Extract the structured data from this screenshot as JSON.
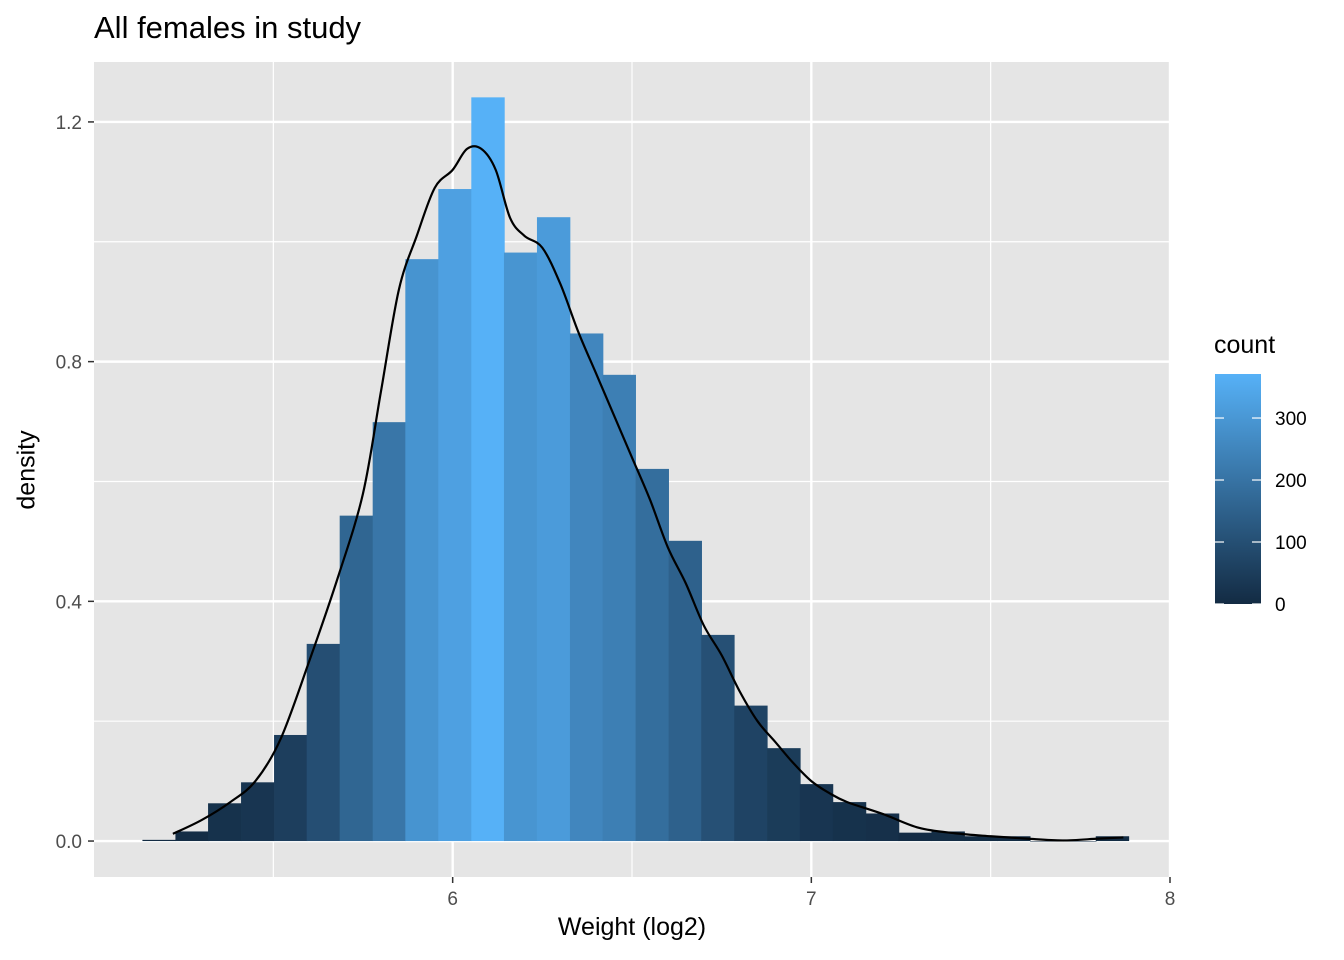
{
  "chart_data": {
    "type": "bar",
    "title": "All females in study",
    "xlabel": "Weight (log2)",
    "ylabel": "density",
    "xlim": [
      5.0,
      8.0
    ],
    "ylim": [
      -0.06,
      1.3
    ],
    "x_ticks": [
      6,
      7,
      8
    ],
    "y_ticks": [
      0.0,
      0.4,
      0.8,
      1.2
    ],
    "y_tick_labels": [
      "0.0",
      "0.4",
      "0.8",
      "1.2"
    ],
    "x_tick_labels": [
      "6",
      "7",
      "8"
    ],
    "bin_width": 0.0917,
    "bins": [
      {
        "x_start": 5.135,
        "density": 0.002,
        "count": 1
      },
      {
        "x_start": 5.227,
        "density": 0.016,
        "count": 5
      },
      {
        "x_start": 5.318,
        "density": 0.063,
        "count": 19
      },
      {
        "x_start": 5.41,
        "density": 0.098,
        "count": 29
      },
      {
        "x_start": 5.502,
        "density": 0.177,
        "count": 53
      },
      {
        "x_start": 5.593,
        "density": 0.329,
        "count": 98
      },
      {
        "x_start": 5.685,
        "density": 0.543,
        "count": 162
      },
      {
        "x_start": 5.777,
        "density": 0.699,
        "count": 209
      },
      {
        "x_start": 5.868,
        "density": 0.971,
        "count": 290
      },
      {
        "x_start": 5.96,
        "density": 1.088,
        "count": 325
      },
      {
        "x_start": 6.052,
        "density": 1.241,
        "count": 371
      },
      {
        "x_start": 6.143,
        "density": 0.982,
        "count": 293
      },
      {
        "x_start": 6.235,
        "density": 1.041,
        "count": 311
      },
      {
        "x_start": 6.327,
        "density": 0.847,
        "count": 253
      },
      {
        "x_start": 6.418,
        "density": 0.778,
        "count": 232
      },
      {
        "x_start": 6.51,
        "density": 0.621,
        "count": 185
      },
      {
        "x_start": 6.602,
        "density": 0.501,
        "count": 150
      },
      {
        "x_start": 6.693,
        "density": 0.344,
        "count": 103
      },
      {
        "x_start": 6.785,
        "density": 0.226,
        "count": 67
      },
      {
        "x_start": 6.877,
        "density": 0.155,
        "count": 46
      },
      {
        "x_start": 6.968,
        "density": 0.095,
        "count": 28
      },
      {
        "x_start": 7.06,
        "density": 0.065,
        "count": 19
      },
      {
        "x_start": 7.152,
        "density": 0.046,
        "count": 14
      },
      {
        "x_start": 7.243,
        "density": 0.014,
        "count": 4
      },
      {
        "x_start": 7.335,
        "density": 0.016,
        "count": 5
      },
      {
        "x_start": 7.427,
        "density": 0.008,
        "count": 2
      },
      {
        "x_start": 7.518,
        "density": 0.008,
        "count": 2
      },
      {
        "x_start": 7.61,
        "density": 0.0,
        "count": 0
      },
      {
        "x_start": 7.702,
        "density": 0.0,
        "count": 0
      },
      {
        "x_start": 7.793,
        "density": 0.008,
        "count": 2
      }
    ],
    "density_curve": {
      "x": [
        5.22,
        5.3,
        5.38,
        5.45,
        5.52,
        5.6,
        5.68,
        5.75,
        5.8,
        5.85,
        5.9,
        5.95,
        6.0,
        6.04,
        6.08,
        6.12,
        6.16,
        6.2,
        6.25,
        6.3,
        6.35,
        6.4,
        6.45,
        6.5,
        6.55,
        6.6,
        6.65,
        6.7,
        6.75,
        6.8,
        6.85,
        6.9,
        6.95,
        7.0,
        7.05,
        7.1,
        7.2,
        7.3,
        7.4,
        7.5,
        7.6,
        7.7,
        7.8,
        7.87
      ],
      "y": [
        0.012,
        0.035,
        0.065,
        0.1,
        0.17,
        0.3,
        0.44,
        0.58,
        0.75,
        0.92,
        1.01,
        1.09,
        1.12,
        1.155,
        1.155,
        1.12,
        1.04,
        1.01,
        0.99,
        0.93,
        0.85,
        0.78,
        0.71,
        0.64,
        0.57,
        0.49,
        0.43,
        0.36,
        0.31,
        0.25,
        0.2,
        0.165,
        0.13,
        0.1,
        0.08,
        0.065,
        0.045,
        0.022,
        0.013,
        0.008,
        0.004,
        0.001,
        0.004,
        0.006
      ]
    },
    "legend": {
      "title": "count",
      "position": "right",
      "min": 0,
      "max": 371,
      "ticks": [
        0,
        100,
        200,
        300
      ],
      "tick_labels": [
        "0",
        "100",
        "200",
        "300"
      ],
      "low_color": "#132B43",
      "high_color": "#56B1F7"
    },
    "panel_color": "#E5E5E5",
    "grid_color": "#FFFFFF",
    "curve_color": "#000000"
  }
}
